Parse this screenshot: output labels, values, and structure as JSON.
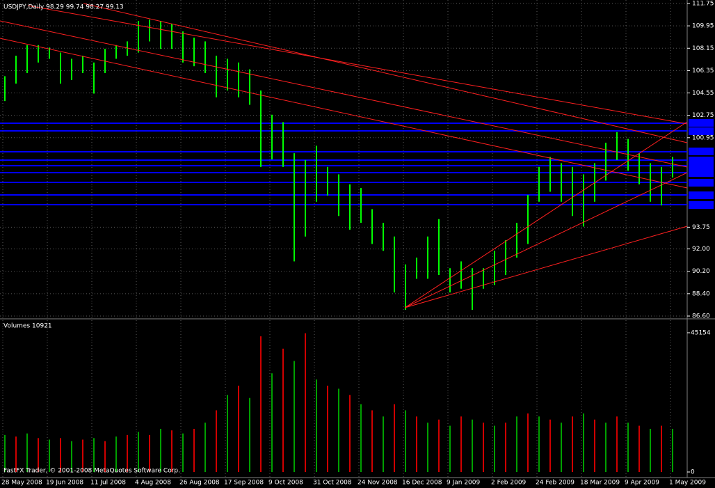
{
  "chart_data": {
    "type": "bar",
    "title": "USDJPY,Daily  98.29 99.74 98.27 99.13",
    "footer": "FastFX Trader, © 2001-2008 MetaQuotes Software Corp.",
    "color": "#00ff00",
    "grid": true,
    "categories": [
      "28 May 2008",
      null,
      null,
      null,
      "19 Jun 2008",
      null,
      null,
      null,
      "11 Jul 2008",
      null,
      null,
      null,
      "4 Aug 2008",
      null,
      null,
      null,
      "26 Aug 2008",
      null,
      null,
      null,
      "17 Sep 2008",
      null,
      null,
      null,
      "9 Oct 2008",
      null,
      null,
      null,
      "31 Oct 2008",
      null,
      null,
      null,
      "24 Nov 2008",
      null,
      null,
      null,
      "16 Dec 2008",
      null,
      null,
      null,
      "9 Jan 2009",
      null,
      null,
      null,
      "2 Feb 2009",
      null,
      null,
      null,
      "24 Feb 2009",
      null,
      null,
      null,
      "18 Mar 2009",
      null,
      null,
      null,
      "9 Apr 2009",
      null,
      null,
      null,
      "1 May 2009"
    ],
    "high": [
      105.9,
      107.55,
      108.4,
      108.4,
      108.2,
      107.8,
      107.3,
      107.55,
      107.0,
      108.1,
      108.4,
      108.7,
      110.35,
      110.45,
      110.35,
      110.1,
      109.5,
      109.0,
      108.7,
      107.55,
      107.3,
      107.0,
      106.45,
      104.75,
      102.8,
      102.2,
      99.7,
      99.15,
      100.3,
      98.6,
      98.0,
      97.2,
      96.9,
      95.2,
      94.1,
      93.0,
      90.75,
      91.3,
      93.0,
      94.4,
      90.45,
      91.0,
      90.45,
      90.45,
      91.85,
      92.7,
      94.1,
      96.35,
      98.6,
      99.4,
      98.9,
      98.6,
      98.0,
      98.9,
      100.55,
      101.4,
      100.85,
      99.7,
      98.9,
      98.6,
      99.4
    ],
    "low": [
      103.9,
      105.3,
      106.15,
      107.0,
      107.3,
      105.3,
      105.6,
      106.15,
      104.5,
      106.15,
      107.3,
      107.55,
      107.8,
      108.7,
      108.1,
      108.1,
      107.0,
      106.7,
      106.15,
      104.2,
      104.75,
      104.2,
      103.6,
      98.6,
      99.2,
      98.6,
      91.0,
      93.0,
      95.8,
      96.3,
      94.65,
      93.55,
      94.1,
      92.4,
      91.85,
      88.5,
      87.1,
      89.6,
      89.6,
      89.9,
      88.5,
      88.8,
      87.1,
      88.8,
      89.1,
      89.9,
      91.3,
      92.4,
      95.8,
      96.6,
      95.8,
      94.65,
      93.8,
      95.8,
      97.5,
      99.15,
      98.3,
      97.2,
      95.8,
      95.5,
      97.75
    ],
    "ylim": [
      86.6,
      111.75
    ],
    "yticks": [
      {
        "value": 86.6,
        "label": "86.60"
      },
      {
        "value": 88.4,
        "label": "88.40"
      },
      {
        "value": 90.2,
        "label": "90.20"
      },
      {
        "value": 92,
        "label": "92.00"
      },
      93.75,
      100.95,
      102.75,
      104.55,
      106.35,
      108.15,
      109.95,
      111.75
    ],
    "volume": {
      "title": "Volumes 10921",
      "colors": [
        "#00a000",
        "#d00000"
      ],
      "values": [
        12000,
        11500,
        12500,
        11000,
        10500,
        11000,
        10000,
        10500,
        11000,
        10000,
        11500,
        12000,
        13000,
        12000,
        14000,
        13500,
        12500,
        14000,
        16000,
        20000,
        25000,
        28000,
        24000,
        44000,
        32000,
        40000,
        36000,
        45000,
        30000,
        28000,
        27000,
        25000,
        22000,
        20000,
        18000,
        22000,
        20000,
        18000,
        16000,
        17000,
        15000,
        18000,
        17000,
        16000,
        15000,
        16000,
        18000,
        19000,
        18000,
        17000,
        16000,
        18000,
        19000,
        17000,
        16000,
        18000,
        16000,
        15000,
        14000,
        15000,
        14000
      ],
      "ylim": [
        0,
        45154
      ],
      "yticks": [
        0,
        45154
      ]
    }
  }
}
